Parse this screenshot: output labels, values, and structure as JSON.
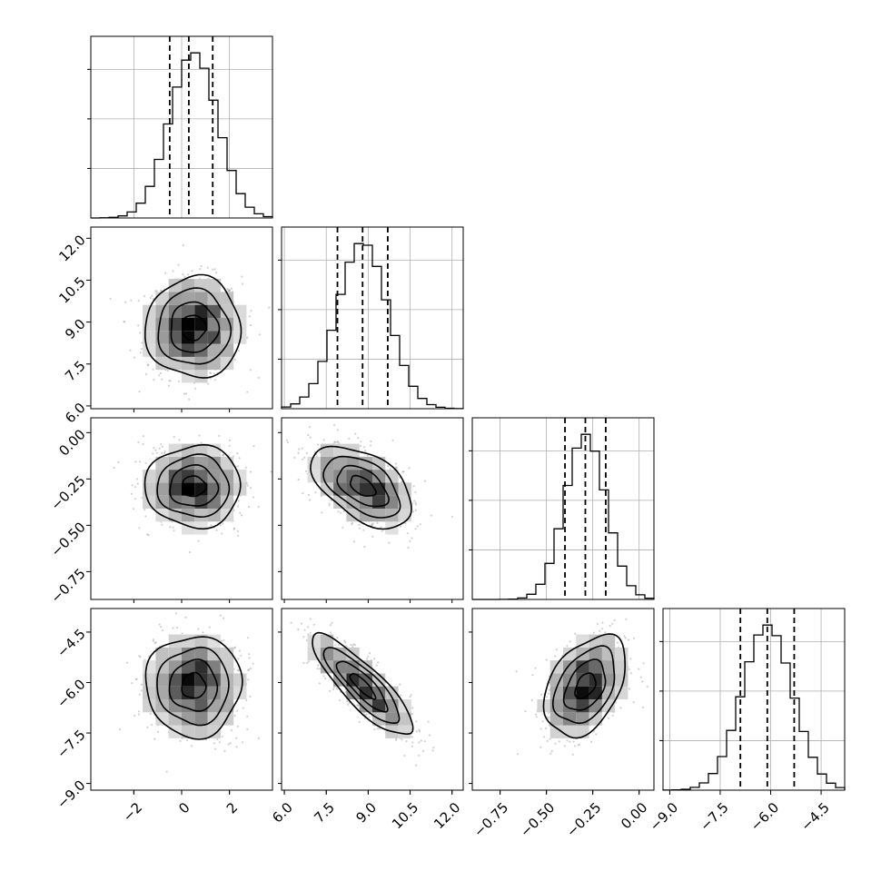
{
  "chart_data": {
    "type": "corner",
    "n_params": 4,
    "params": [
      {
        "mean": 0.5,
        "sd": 1.0,
        "quantiles": [
          -0.5,
          0.3,
          1.3
        ],
        "range": [
          -3.8,
          3.8
        ],
        "ticks": [
          -2,
          0,
          2
        ],
        "tick_labels": [
          "−2",
          "0",
          "2"
        ]
      },
      {
        "mean": 8.8,
        "sd": 0.9,
        "quantiles": [
          7.9,
          8.8,
          9.7
        ],
        "range": [
          5.9,
          12.4
        ],
        "ticks": [
          6.0,
          7.5,
          9.0,
          10.5,
          12.0
        ],
        "tick_labels": [
          "6.0",
          "7.5",
          "9.0",
          "10.5",
          "12.0"
        ]
      },
      {
        "mean": -0.29,
        "sd": 0.11,
        "quantiles": [
          -0.4,
          -0.29,
          -0.18
        ],
        "range": [
          -0.9,
          0.08
        ],
        "ticks": [
          -0.75,
          -0.5,
          -0.25,
          0.0
        ],
        "tick_labels": [
          "−0.75",
          "−0.50",
          "−0.25",
          "0.00"
        ]
      },
      {
        "mean": -6.1,
        "sd": 0.75,
        "quantiles": [
          -6.9,
          -6.1,
          -5.3
        ],
        "range": [
          -9.2,
          -3.8
        ],
        "ticks": [
          -9.0,
          -7.5,
          -6.0,
          -4.5
        ],
        "tick_labels": [
          "−9.0",
          "−7.5",
          "−6.0",
          "−4.5"
        ]
      }
    ],
    "correlations": [
      {
        "i": 1,
        "j": 0,
        "rho": 0.0
      },
      {
        "i": 2,
        "j": 0,
        "rho": 0.0
      },
      {
        "i": 2,
        "j": 1,
        "rho": -0.5
      },
      {
        "i": 3,
        "j": 0,
        "rho": 0.0
      },
      {
        "i": 3,
        "j": 1,
        "rho": -0.85
      },
      {
        "i": 3,
        "j": 2,
        "rho": 0.4
      }
    ],
    "histogram_bins": 20,
    "contour_levels_sigma": [
      0.5,
      1.0,
      1.5,
      2.0
    ],
    "grid": true,
    "colors": {
      "line": "#000000",
      "points": "#9a9a9a",
      "grid": "#b0b0b0"
    }
  }
}
